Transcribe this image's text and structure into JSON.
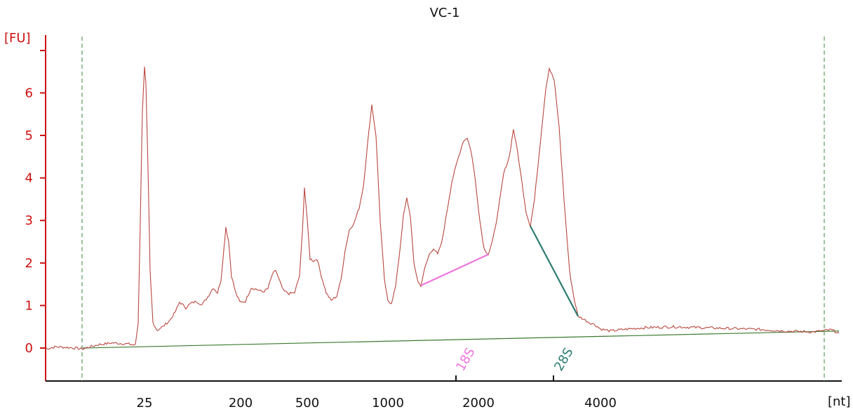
{
  "chart_data": {
    "type": "line",
    "title": "VC-1",
    "ylabel": "[FU]",
    "xlabel": "[nt]",
    "ylim": [
      -0.75,
      7.4
    ],
    "y_ticks": [
      0,
      1,
      2,
      3,
      4,
      5,
      6
    ],
    "x_tick_labels": [
      "25",
      "200",
      "500",
      "1000",
      "2000",
      "4000"
    ],
    "grid": false,
    "colors": {
      "trace": "#b8473f",
      "axis": "#cc1111",
      "baseline": "#3a7a2e",
      "marker_18s": "#ee77dd",
      "marker_28s": "#2e7c72",
      "bound_lines": "#3a8a3a"
    },
    "markers": [
      {
        "label": "18S",
        "color": "#ee77dd"
      },
      {
        "label": "28S",
        "color": "#2e7c72"
      }
    ],
    "series": [
      {
        "values": [
          [
            65,
            -0.02
          ],
          [
            80,
            0.03
          ],
          [
            100,
            0.01
          ],
          [
            118,
            -0.02
          ],
          [
            140,
            0.08
          ],
          [
            160,
            0.12
          ],
          [
            180,
            0.1
          ],
          [
            193,
            0.07
          ],
          [
            197,
            0.6
          ],
          [
            200,
            3.0
          ],
          [
            203,
            5.6
          ],
          [
            206,
            6.6
          ],
          [
            208,
            6.2
          ],
          [
            211,
            4.2
          ],
          [
            214,
            1.8
          ],
          [
            218,
            0.6
          ],
          [
            224,
            0.42
          ],
          [
            232,
            0.5
          ],
          [
            242,
            0.65
          ],
          [
            250,
            0.85
          ],
          [
            256,
            1.08
          ],
          [
            265,
            0.95
          ],
          [
            272,
            1.05
          ],
          [
            280,
            1.1
          ],
          [
            288,
            1.02
          ],
          [
            296,
            1.2
          ],
          [
            304,
            1.42
          ],
          [
            310,
            1.3
          ],
          [
            315,
            1.6
          ],
          [
            319,
            2.3
          ],
          [
            322,
            2.85
          ],
          [
            326,
            2.5
          ],
          [
            330,
            1.7
          ],
          [
            336,
            1.3
          ],
          [
            342,
            1.08
          ],
          [
            350,
            1.1
          ],
          [
            358,
            1.42
          ],
          [
            366,
            1.38
          ],
          [
            375,
            1.32
          ],
          [
            382,
            1.4
          ],
          [
            388,
            1.72
          ],
          [
            393,
            1.83
          ],
          [
            398,
            1.6
          ],
          [
            404,
            1.35
          ],
          [
            412,
            1.28
          ],
          [
            420,
            1.3
          ],
          [
            427,
            1.7
          ],
          [
            431,
            2.7
          ],
          [
            434,
            3.78
          ],
          [
            438,
            3.0
          ],
          [
            442,
            2.1
          ],
          [
            447,
            2.05
          ],
          [
            452,
            2.1
          ],
          [
            458,
            1.7
          ],
          [
            465,
            1.3
          ],
          [
            472,
            1.12
          ],
          [
            480,
            1.22
          ],
          [
            486,
            1.6
          ],
          [
            492,
            2.3
          ],
          [
            498,
            2.78
          ],
          [
            505,
            2.95
          ],
          [
            512,
            3.3
          ],
          [
            518,
            3.8
          ],
          [
            524,
            4.8
          ],
          [
            530,
            5.72
          ],
          [
            536,
            5.0
          ],
          [
            542,
            3.0
          ],
          [
            548,
            1.6
          ],
          [
            553,
            1.1
          ],
          [
            558,
            1.06
          ],
          [
            564,
            1.45
          ],
          [
            570,
            2.3
          ],
          [
            575,
            3.1
          ],
          [
            580,
            3.52
          ],
          [
            585,
            3.1
          ],
          [
            590,
            2.0
          ],
          [
            596,
            1.55
          ],
          [
            600,
            1.47
          ],
          [
            606,
            1.9
          ],
          [
            612,
            2.2
          ],
          [
            618,
            2.35
          ],
          [
            624,
            2.2
          ],
          [
            630,
            2.5
          ],
          [
            637,
            3.2
          ],
          [
            644,
            3.9
          ],
          [
            652,
            4.4
          ],
          [
            660,
            4.85
          ],
          [
            666,
            4.95
          ],
          [
            672,
            4.6
          ],
          [
            678,
            3.9
          ],
          [
            684,
            3.0
          ],
          [
            690,
            2.35
          ],
          [
            696,
            2.2
          ],
          [
            702,
            2.5
          ],
          [
            710,
            3.2
          ],
          [
            718,
            4.1
          ],
          [
            726,
            4.5
          ],
          [
            732,
            5.15
          ],
          [
            738,
            4.6
          ],
          [
            744,
            3.9
          ],
          [
            750,
            3.2
          ],
          [
            756,
            2.87
          ],
          [
            762,
            3.5
          ],
          [
            770,
            4.8
          ],
          [
            778,
            6.1
          ],
          [
            783,
            6.58
          ],
          [
            790,
            6.3
          ],
          [
            797,
            5.2
          ],
          [
            804,
            3.5
          ],
          [
            812,
            1.8
          ],
          [
            818,
            1.2
          ],
          [
            824,
            0.75
          ],
          [
            832,
            0.68
          ],
          [
            840,
            0.6
          ],
          [
            848,
            0.55
          ],
          [
            856,
            0.45
          ],
          [
            870,
            0.4
          ],
          [
            890,
            0.44
          ],
          [
            920,
            0.48
          ],
          [
            960,
            0.5
          ],
          [
            1000,
            0.48
          ],
          [
            1040,
            0.46
          ],
          [
            1080,
            0.44
          ],
          [
            1120,
            0.4
          ],
          [
            1160,
            0.38
          ],
          [
            1185,
            0.43
          ],
          [
            1196,
            0.35
          ]
        ]
      }
    ],
    "baseline": [
      [
        118,
        0.0
      ],
      [
        1196,
        0.4
      ]
    ],
    "marker_18s_segment": [
      [
        600,
        1.47
      ],
      [
        696,
        2.2
      ]
    ],
    "marker_28s_segment": [
      [
        756,
        2.87
      ],
      [
        824,
        0.75
      ]
    ]
  }
}
